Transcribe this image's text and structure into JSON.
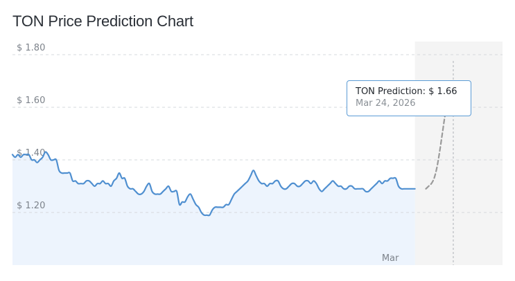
{
  "chart_data": {
    "type": "area",
    "title": "TON Price Prediction Chart",
    "currency_symbol": "$",
    "y_ticks": [
      1.2,
      1.4,
      1.6,
      1.8
    ],
    "y_tick_labels": [
      "$ 1.20",
      "$ 1.40",
      "$ 1.60",
      "$ 1.80"
    ],
    "ylim": [
      1.0,
      1.85
    ],
    "x_tick_labels": [
      {
        "label": "Mar",
        "index": 138
      }
    ],
    "grid": "horizontal-dashed",
    "history": [
      1.42,
      1.41,
      1.42,
      1.41,
      1.42,
      1.42,
      1.42,
      1.4,
      1.4,
      1.39,
      1.4,
      1.41,
      1.43,
      1.42,
      1.4,
      1.4,
      1.4,
      1.36,
      1.35,
      1.35,
      1.35,
      1.35,
      1.32,
      1.32,
      1.31,
      1.31,
      1.31,
      1.32,
      1.32,
      1.31,
      1.3,
      1.31,
      1.31,
      1.32,
      1.31,
      1.31,
      1.3,
      1.32,
      1.33,
      1.35,
      1.33,
      1.33,
      1.3,
      1.29,
      1.29,
      1.28,
      1.27,
      1.27,
      1.28,
      1.3,
      1.31,
      1.28,
      1.27,
      1.27,
      1.27,
      1.28,
      1.29,
      1.3,
      1.28,
      1.28,
      1.28,
      1.23,
      1.24,
      1.24,
      1.26,
      1.27,
      1.25,
      1.23,
      1.22,
      1.2,
      1.19,
      1.19,
      1.19,
      1.21,
      1.22,
      1.22,
      1.22,
      1.22,
      1.23,
      1.23,
      1.25,
      1.27,
      1.28,
      1.29,
      1.3,
      1.31,
      1.32,
      1.34,
      1.36,
      1.34,
      1.32,
      1.31,
      1.31,
      1.3,
      1.31,
      1.31,
      1.32,
      1.32,
      1.3,
      1.29,
      1.29,
      1.3,
      1.31,
      1.31,
      1.3,
      1.3,
      1.31,
      1.32,
      1.32,
      1.31,
      1.32,
      1.31,
      1.29,
      1.28,
      1.29,
      1.3,
      1.31,
      1.32,
      1.31,
      1.3,
      1.3,
      1.29,
      1.29,
      1.3,
      1.3,
      1.29,
      1.29,
      1.29,
      1.29,
      1.28,
      1.28,
      1.29,
      1.3,
      1.31,
      1.32,
      1.31,
      1.32,
      1.32,
      1.33,
      1.33,
      1.33,
      1.3,
      1.29,
      1.29,
      1.29,
      1.29,
      1.29,
      1.29
    ],
    "prediction": [
      1.29,
      1.3,
      1.31,
      1.33,
      1.37,
      1.43,
      1.5,
      1.57,
      1.62,
      1.655,
      1.665,
      1.66,
      1.655,
      1.645,
      1.63
    ],
    "prediction_start_index": 151,
    "tooltip": {
      "series_label": "TON Prediction:",
      "value_label": "$ 1.66",
      "date_label": "Mar 24, 2026",
      "index": 161
    },
    "colors": {
      "line": "#4f8fd0",
      "area": "#edf4fd",
      "prediction_line": "#9a9a9a",
      "prediction_area": "#f4f4f4",
      "grid": "#d6d9dd"
    }
  }
}
